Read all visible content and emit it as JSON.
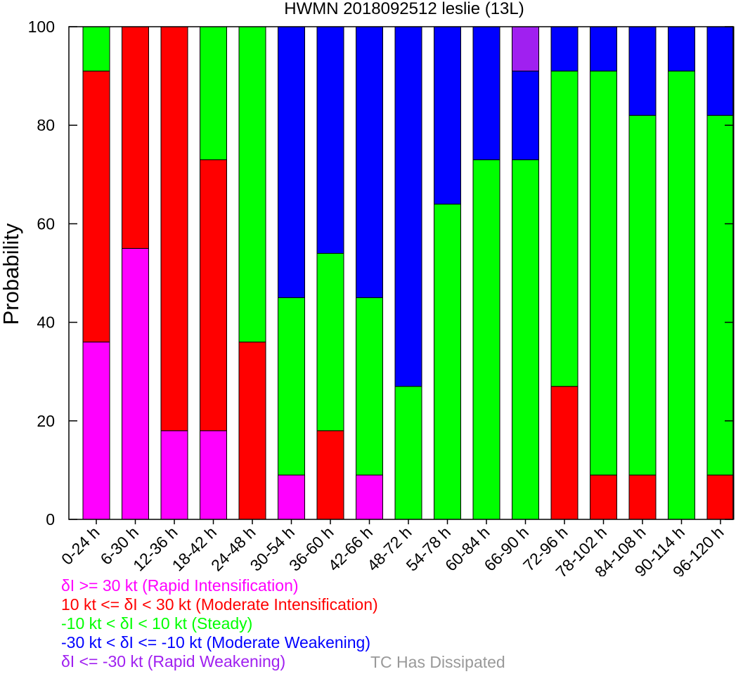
{
  "chart_data": {
    "type": "bar",
    "stacked": true,
    "title": "HWMN 2018092512 leslie (13L)",
    "xlabel": "",
    "ylabel": "Probability",
    "ylim": [
      0,
      100
    ],
    "yticks": [
      0,
      20,
      40,
      60,
      80,
      100
    ],
    "grid": false,
    "categories": [
      "0-24 h",
      "6-30 h",
      "12-36 h",
      "18-42 h",
      "24-48 h",
      "30-54 h",
      "36-60 h",
      "42-66 h",
      "48-72 h",
      "54-78 h",
      "60-84 h",
      "66-90 h",
      "72-96 h",
      "78-102 h",
      "84-108 h",
      "90-114 h",
      "96-120 h"
    ],
    "series": [
      {
        "name": "δI >= 30 kt (Rapid Intensification)",
        "color": "#ff00ff",
        "values": [
          36,
          55,
          18,
          18,
          0,
          9,
          0,
          9,
          0,
          0,
          0,
          0,
          0,
          0,
          0,
          0,
          0
        ]
      },
      {
        "name": "10 kt <= δI < 30 kt (Moderate Intensification)",
        "color": "#ff0000",
        "values": [
          55,
          45,
          82,
          55,
          36,
          0,
          18,
          0,
          0,
          0,
          0,
          0,
          27,
          9,
          9,
          0,
          9
        ]
      },
      {
        "name": "-10 kt < δI < 10 kt (Steady)",
        "color": "#00ff00",
        "values": [
          9,
          0,
          0,
          27,
          64,
          36,
          36,
          36,
          27,
          64,
          73,
          73,
          64,
          82,
          73,
          91,
          73
        ]
      },
      {
        "name": "-30 kt < δI <= -10 kt (Moderate Weakening)",
        "color": "#0000ff",
        "values": [
          0,
          0,
          0,
          0,
          0,
          55,
          46,
          55,
          73,
          36,
          27,
          18,
          9,
          9,
          18,
          9,
          18
        ]
      },
      {
        "name": "δI <= -30 kt (Rapid Weakening)",
        "color": "#a020f0",
        "values": [
          0,
          0,
          0,
          0,
          0,
          0,
          0,
          0,
          0,
          0,
          0,
          9,
          0,
          0,
          0,
          0,
          0
        ]
      }
    ],
    "extra_legend": {
      "label": "TC Has Dissipated",
      "color": "#999999"
    }
  }
}
